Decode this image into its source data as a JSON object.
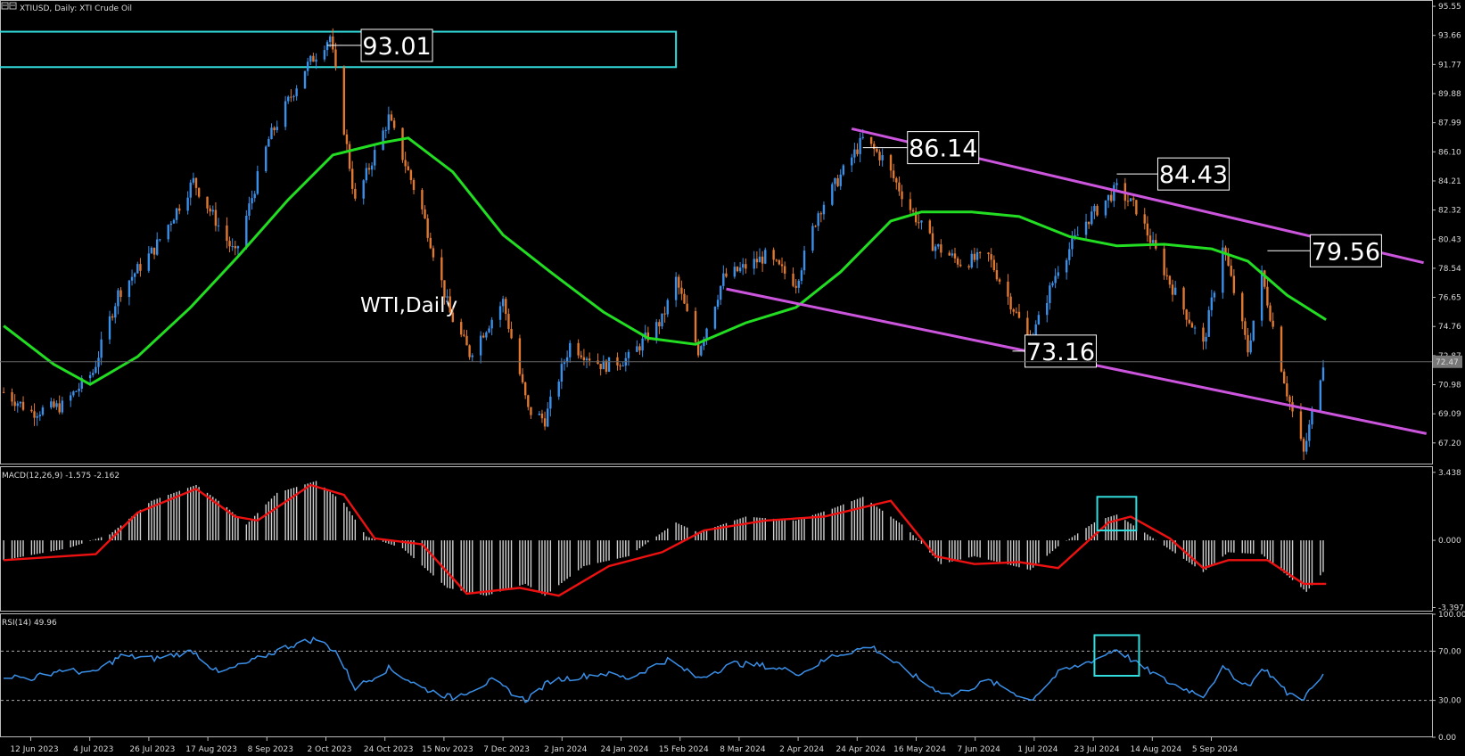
{
  "header": {
    "symbol_text": "XTIUSD, Daily:  XTI Crude Oil",
    "watermark": "WTI,Daily"
  },
  "colors": {
    "background": "#000000",
    "bull_candle": "#3a8fe8",
    "bear_candle": "#e07830",
    "ma_line": "#22dd22",
    "channel": "#cc55dd",
    "highlight_box": "#33dddd",
    "macd_hist": "#d0d0d0",
    "macd_signal": "#ee1111",
    "rsi_line": "#3a8fe8"
  },
  "chart_data": [
    {
      "type": "candlestick",
      "panel": "price",
      "title": "XTIUSD, Daily:  XTI Crude Oil",
      "y_ticks": [
        "95.55",
        "93.66",
        "91.77",
        "89.88",
        "87.99",
        "86.10",
        "84.21",
        "82.32",
        "80.43",
        "78.54",
        "76.65",
        "74.76",
        "72.87",
        "70.98",
        "69.09",
        "67.20"
      ],
      "ylim": [
        65.8,
        95.9
      ],
      "current_price": "72.47",
      "x_ticks": [
        "12 Jun 2023",
        "4 Jul 2023",
        "26 Jul 2023",
        "17 Aug 2023",
        "8 Sep 2023",
        "2 Oct 2023",
        "24 Oct 2023",
        "15 Nov 2023",
        "7 Dec 2023",
        "2 Jan 2024",
        "24 Jan 2024",
        "15 Feb 2024",
        "8 Mar 2024",
        "2 Apr 2024",
        "24 Apr 2024",
        "16 May 2024",
        "7 Jun 2024",
        "1 Jul 2024",
        "23 Jul 2024",
        "14 Aug 2024",
        "5 Sep 2024"
      ],
      "close_path": [
        {
          "x": "2023-06-02",
          "y": 70.5
        },
        {
          "x": "2023-06-12",
          "y": 69.2
        },
        {
          "x": "2023-06-23",
          "y": 69.6
        },
        {
          "x": "2023-07-04",
          "y": 71.8
        },
        {
          "x": "2023-07-13",
          "y": 76.9
        },
        {
          "x": "2023-07-26",
          "y": 79.8
        },
        {
          "x": "2023-08-09",
          "y": 84.2
        },
        {
          "x": "2023-08-24",
          "y": 79.4
        },
        {
          "x": "2023-09-05",
          "y": 86.9
        },
        {
          "x": "2023-09-18",
          "y": 91.5
        },
        {
          "x": "2023-09-27",
          "y": 93.6
        },
        {
          "x": "2023-10-06",
          "y": 82.8
        },
        {
          "x": "2023-10-18",
          "y": 88.3
        },
        {
          "x": "2023-10-30",
          "y": 82.3
        },
        {
          "x": "2023-11-09",
          "y": 75.6
        },
        {
          "x": "2023-11-16",
          "y": 73.0
        },
        {
          "x": "2023-11-28",
          "y": 76.4
        },
        {
          "x": "2023-12-07",
          "y": 69.3
        },
        {
          "x": "2023-12-13",
          "y": 68.7
        },
        {
          "x": "2023-12-22",
          "y": 73.6
        },
        {
          "x": "2024-01-03",
          "y": 72.2
        },
        {
          "x": "2024-01-12",
          "y": 72.7
        },
        {
          "x": "2024-01-24",
          "y": 75.2
        },
        {
          "x": "2024-01-29",
          "y": 77.8
        },
        {
          "x": "2024-02-06",
          "y": 73.2
        },
        {
          "x": "2024-02-15",
          "y": 77.9
        },
        {
          "x": "2024-03-01",
          "y": 79.3
        },
        {
          "x": "2024-03-12",
          "y": 77.6
        },
        {
          "x": "2024-03-20",
          "y": 82.2
        },
        {
          "x": "2024-04-05",
          "y": 86.9
        },
        {
          "x": "2024-04-12",
          "y": 85.7
        },
        {
          "x": "2024-04-22",
          "y": 82.4
        },
        {
          "x": "2024-04-30",
          "y": 80.1
        },
        {
          "x": "2024-05-10",
          "y": 78.9
        },
        {
          "x": "2024-05-20",
          "y": 79.3
        },
        {
          "x": "2024-06-04",
          "y": 73.7
        },
        {
          "x": "2024-06-14",
          "y": 78.6
        },
        {
          "x": "2024-06-24",
          "y": 81.6
        },
        {
          "x": "2024-07-05",
          "y": 83.7
        },
        {
          "x": "2024-07-12",
          "y": 82.4
        },
        {
          "x": "2024-07-24",
          "y": 77.6
        },
        {
          "x": "2024-08-05",
          "y": 73.5
        },
        {
          "x": "2024-08-12",
          "y": 80.1
        },
        {
          "x": "2024-08-21",
          "y": 73.2
        },
        {
          "x": "2024-08-26",
          "y": 78.1
        },
        {
          "x": "2024-09-04",
          "y": 70.5
        },
        {
          "x": "2024-09-10",
          "y": 66.5
        },
        {
          "x": "2024-09-17",
          "y": 72.5
        }
      ],
      "moving_average": [
        {
          "x": "2023-06-02",
          "y": 74.8
        },
        {
          "x": "2023-06-20",
          "y": 72.3
        },
        {
          "x": "2023-07-03",
          "y": 71.0
        },
        {
          "x": "2023-07-20",
          "y": 72.8
        },
        {
          "x": "2023-08-08",
          "y": 76.0
        },
        {
          "x": "2023-08-25",
          "y": 79.3
        },
        {
          "x": "2023-09-12",
          "y": 83.0
        },
        {
          "x": "2023-09-28",
          "y": 85.9
        },
        {
          "x": "2023-10-16",
          "y": 86.7
        },
        {
          "x": "2023-10-25",
          "y": 87.0
        },
        {
          "x": "2023-11-10",
          "y": 84.8
        },
        {
          "x": "2023-11-28",
          "y": 80.7
        },
        {
          "x": "2023-12-15",
          "y": 78.3
        },
        {
          "x": "2024-01-03",
          "y": 75.7
        },
        {
          "x": "2024-01-19",
          "y": 74.0
        },
        {
          "x": "2024-02-05",
          "y": 73.6
        },
        {
          "x": "2024-02-23",
          "y": 75.0
        },
        {
          "x": "2024-03-12",
          "y": 76.0
        },
        {
          "x": "2024-03-28",
          "y": 78.3
        },
        {
          "x": "2024-04-15",
          "y": 81.6
        },
        {
          "x": "2024-04-26",
          "y": 82.2
        },
        {
          "x": "2024-05-14",
          "y": 82.2
        },
        {
          "x": "2024-05-31",
          "y": 81.9
        },
        {
          "x": "2024-06-18",
          "y": 80.6
        },
        {
          "x": "2024-07-05",
          "y": 80.0
        },
        {
          "x": "2024-07-22",
          "y": 80.1
        },
        {
          "x": "2024-08-08",
          "y": 79.8
        },
        {
          "x": "2024-08-21",
          "y": 79.0
        },
        {
          "x": "2024-09-04",
          "y": 76.8
        },
        {
          "x": "2024-09-18",
          "y": 75.2
        }
      ],
      "channel_upper": [
        {
          "x": "2024-04-01",
          "y": 87.6
        },
        {
          "x": "2024-10-23",
          "y": 78.9
        }
      ],
      "channel_lower": [
        {
          "x": "2024-02-16",
          "y": 77.2
        },
        {
          "x": "2024-10-24",
          "y": 67.8
        }
      ],
      "annotations": [
        {
          "text": "93.01",
          "x": "2023-09-26",
          "y": 93.01
        },
        {
          "text": "86.14",
          "x": "2024-04-05",
          "y": 86.14
        },
        {
          "text": "84.43",
          "x": "2024-07-05",
          "y": 84.43
        },
        {
          "text": "79.56",
          "x": "2024-08-28",
          "y": 79.56
        },
        {
          "text": "73.16",
          "x": "2024-06-04",
          "y": 73.16
        }
      ],
      "resistance_zone": {
        "y_low": 91.6,
        "y_high": 93.9,
        "x_end": "2024-01-29"
      }
    },
    {
      "type": "bar",
      "panel": "macd",
      "title": "MACD(12,26,9) -1.575 -2.162",
      "y_ticks": [
        "3.438",
        "0.000",
        "-3.397"
      ],
      "ylim": [
        -3.6,
        3.7
      ],
      "histogram": [
        {
          "x": "2023-06-02",
          "y": -1.0
        },
        {
          "x": "2023-06-25",
          "y": -0.4
        },
        {
          "x": "2023-07-10",
          "y": 0.3
        },
        {
          "x": "2023-07-25",
          "y": 2.0
        },
        {
          "x": "2023-08-10",
          "y": 2.8
        },
        {
          "x": "2023-08-20",
          "y": 1.8
        },
        {
          "x": "2023-08-28",
          "y": 0.8
        },
        {
          "x": "2023-09-08",
          "y": 2.4
        },
        {
          "x": "2023-09-22",
          "y": 3.0
        },
        {
          "x": "2023-10-02",
          "y": 1.9
        },
        {
          "x": "2023-10-10",
          "y": 0.2
        },
        {
          "x": "2023-10-23",
          "y": -0.4
        },
        {
          "x": "2023-11-08",
          "y": -2.4
        },
        {
          "x": "2023-11-22",
          "y": -2.8
        },
        {
          "x": "2023-12-06",
          "y": -2.2
        },
        {
          "x": "2023-12-13",
          "y": -2.8
        },
        {
          "x": "2023-12-27",
          "y": -1.3
        },
        {
          "x": "2024-01-12",
          "y": -0.8
        },
        {
          "x": "2024-01-29",
          "y": 0.9
        },
        {
          "x": "2024-02-06",
          "y": 0.4
        },
        {
          "x": "2024-02-23",
          "y": 1.2
        },
        {
          "x": "2024-03-12",
          "y": 1.0
        },
        {
          "x": "2024-03-25",
          "y": 1.6
        },
        {
          "x": "2024-04-05",
          "y": 2.2
        },
        {
          "x": "2024-04-20",
          "y": 0.7
        },
        {
          "x": "2024-05-03",
          "y": -1.2
        },
        {
          "x": "2024-05-15",
          "y": -0.8
        },
        {
          "x": "2024-06-04",
          "y": -1.5
        },
        {
          "x": "2024-06-14",
          "y": -0.3
        },
        {
          "x": "2024-06-28",
          "y": 1.0
        },
        {
          "x": "2024-07-05",
          "y": 1.3
        },
        {
          "x": "2024-07-16",
          "y": 0.3
        },
        {
          "x": "2024-08-05",
          "y": -1.6
        },
        {
          "x": "2024-08-14",
          "y": -0.6
        },
        {
          "x": "2024-08-26",
          "y": -0.7
        },
        {
          "x": "2024-09-11",
          "y": -2.6
        },
        {
          "x": "2024-09-17",
          "y": -1.6
        }
      ],
      "signal": [
        {
          "x": "2023-06-02",
          "y": -1.0
        },
        {
          "x": "2023-07-05",
          "y": -0.7
        },
        {
          "x": "2023-07-20",
          "y": 1.4
        },
        {
          "x": "2023-08-10",
          "y": 2.6
        },
        {
          "x": "2023-08-24",
          "y": 1.2
        },
        {
          "x": "2023-09-01",
          "y": 1.0
        },
        {
          "x": "2023-09-20",
          "y": 2.8
        },
        {
          "x": "2023-10-02",
          "y": 2.3
        },
        {
          "x": "2023-10-13",
          "y": 0.1
        },
        {
          "x": "2023-10-30",
          "y": -0.2
        },
        {
          "x": "2023-11-15",
          "y": -2.7
        },
        {
          "x": "2023-12-04",
          "y": -2.4
        },
        {
          "x": "2023-12-18",
          "y": -2.8
        },
        {
          "x": "2024-01-05",
          "y": -1.3
        },
        {
          "x": "2024-01-24",
          "y": -0.6
        },
        {
          "x": "2024-02-08",
          "y": 0.5
        },
        {
          "x": "2024-03-01",
          "y": 1.0
        },
        {
          "x": "2024-03-22",
          "y": 1.2
        },
        {
          "x": "2024-04-15",
          "y": 2.0
        },
        {
          "x": "2024-05-01",
          "y": -0.8
        },
        {
          "x": "2024-05-15",
          "y": -1.2
        },
        {
          "x": "2024-05-31",
          "y": -1.1
        },
        {
          "x": "2024-06-14",
          "y": -1.4
        },
        {
          "x": "2024-07-02",
          "y": 0.9
        },
        {
          "x": "2024-07-10",
          "y": 1.2
        },
        {
          "x": "2024-07-24",
          "y": 0.1
        },
        {
          "x": "2024-08-05",
          "y": -1.4
        },
        {
          "x": "2024-08-14",
          "y": -1.0
        },
        {
          "x": "2024-08-28",
          "y": -1.0
        },
        {
          "x": "2024-09-10",
          "y": -2.2
        },
        {
          "x": "2024-09-18",
          "y": -2.2
        }
      ]
    },
    {
      "type": "line",
      "panel": "rsi",
      "title": "RSI(14) 49.96",
      "y_ticks": [
        "100.00",
        "70.00",
        "30.00",
        "0.00"
      ],
      "ylim": [
        0,
        100
      ],
      "levels": [
        70,
        30
      ],
      "values": [
        {
          "x": "2023-06-02",
          "y": 50
        },
        {
          "x": "2023-06-12",
          "y": 48
        },
        {
          "x": "2023-06-23",
          "y": 55
        },
        {
          "x": "2023-07-04",
          "y": 52
        },
        {
          "x": "2023-07-14",
          "y": 66
        },
        {
          "x": "2023-07-26",
          "y": 64
        },
        {
          "x": "2023-08-09",
          "y": 70
        },
        {
          "x": "2023-08-18",
          "y": 52
        },
        {
          "x": "2023-08-28",
          "y": 60
        },
        {
          "x": "2023-09-12",
          "y": 74
        },
        {
          "x": "2023-09-22",
          "y": 80
        },
        {
          "x": "2023-09-29",
          "y": 70
        },
        {
          "x": "2023-10-06",
          "y": 40
        },
        {
          "x": "2023-10-18",
          "y": 56
        },
        {
          "x": "2023-10-30",
          "y": 40
        },
        {
          "x": "2023-11-10",
          "y": 32
        },
        {
          "x": "2023-11-24",
          "y": 46
        },
        {
          "x": "2023-12-06",
          "y": 30
        },
        {
          "x": "2023-12-15",
          "y": 46
        },
        {
          "x": "2024-01-03",
          "y": 52
        },
        {
          "x": "2024-01-12",
          "y": 48
        },
        {
          "x": "2024-01-26",
          "y": 63
        },
        {
          "x": "2024-02-06",
          "y": 48
        },
        {
          "x": "2024-02-19",
          "y": 60
        },
        {
          "x": "2024-03-01",
          "y": 58
        },
        {
          "x": "2024-03-14",
          "y": 52
        },
        {
          "x": "2024-03-25",
          "y": 66
        },
        {
          "x": "2024-04-08",
          "y": 74
        },
        {
          "x": "2024-04-18",
          "y": 58
        },
        {
          "x": "2024-04-30",
          "y": 40
        },
        {
          "x": "2024-05-07",
          "y": 34
        },
        {
          "x": "2024-05-20",
          "y": 46
        },
        {
          "x": "2024-06-04",
          "y": 30
        },
        {
          "x": "2024-06-14",
          "y": 52
        },
        {
          "x": "2024-06-28",
          "y": 64
        },
        {
          "x": "2024-07-05",
          "y": 72
        },
        {
          "x": "2024-07-12",
          "y": 60
        },
        {
          "x": "2024-07-24",
          "y": 44
        },
        {
          "x": "2024-08-05",
          "y": 34
        },
        {
          "x": "2024-08-12",
          "y": 56
        },
        {
          "x": "2024-08-21",
          "y": 42
        },
        {
          "x": "2024-08-27",
          "y": 56
        },
        {
          "x": "2024-09-04",
          "y": 36
        },
        {
          "x": "2024-09-10",
          "y": 32
        },
        {
          "x": "2024-09-17",
          "y": 50
        }
      ]
    }
  ]
}
